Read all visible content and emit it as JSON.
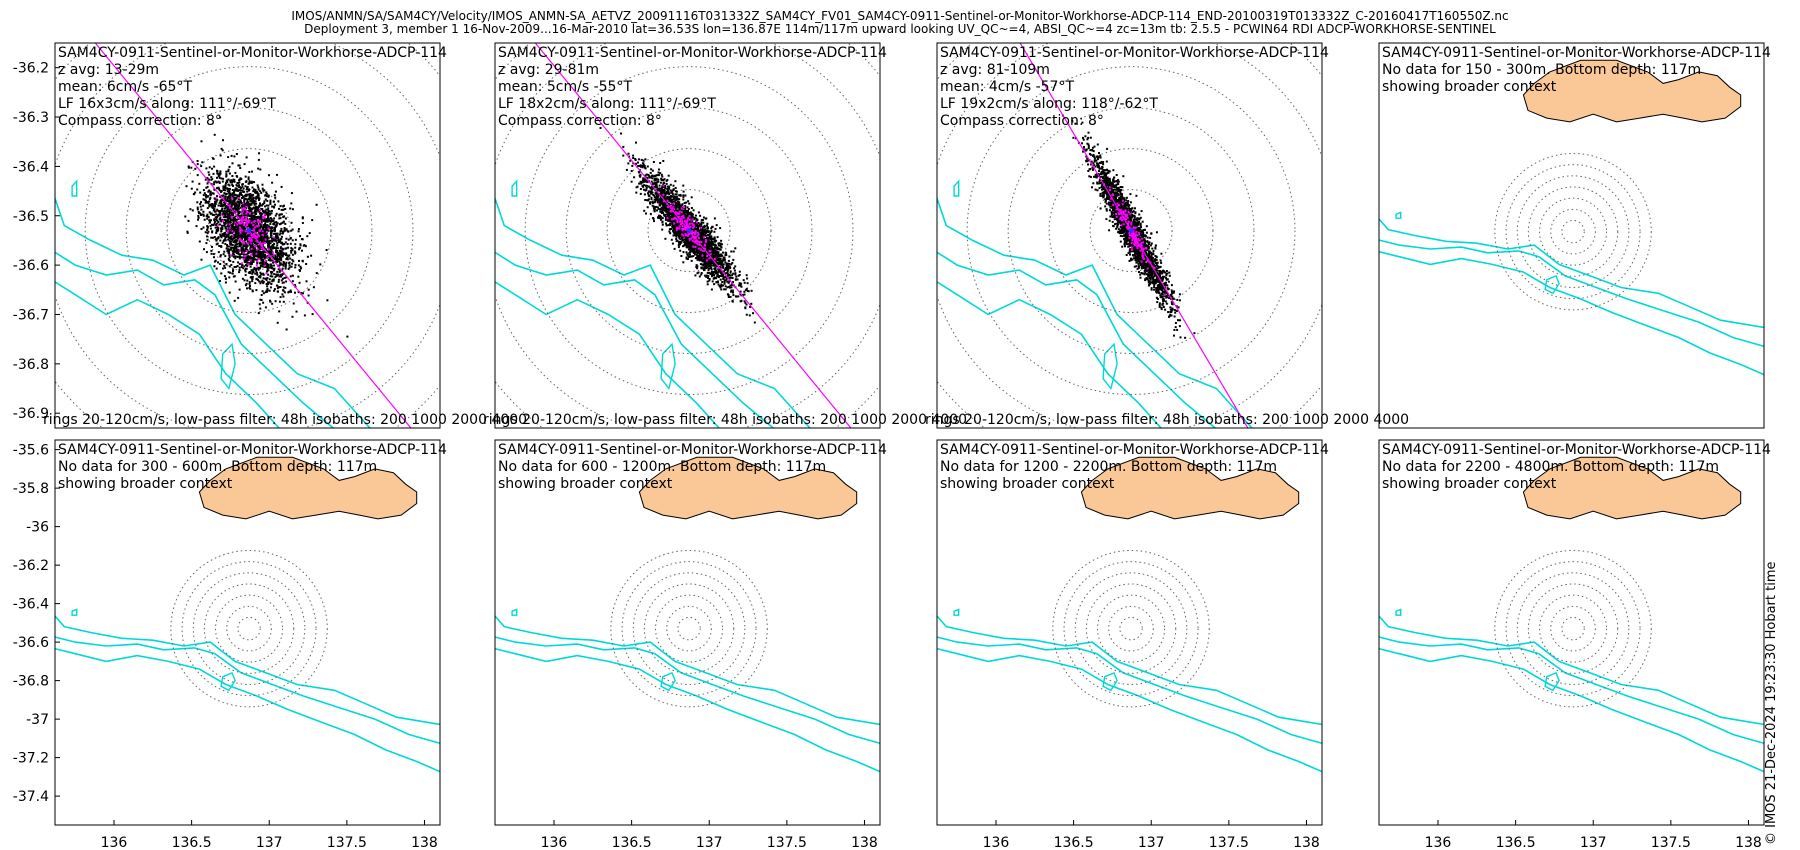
{
  "header": {
    "line1": "IMOS/ANMN/SA/SAM4CY/Velocity/IMOS_ANMN-SA_AETVZ_20091116T031332Z_SAM4CY_FV01_SAM4CY-0911-Sentinel-or-Monitor-Workhorse-ADCP-114_END-20100319T013332Z_C-20160417T160550Z.nc",
    "line2": "Deployment 3, member 1 16-Nov-2009...16-Mar-2010 lat=36.53S lon=136.87E 114m/117m upward looking UV_QC~=4, ABSI_QC~=4 zc=13m tb: 2.5.5 - PCWIN64 RDI ADCP-WORKHORSE-SENTINEL"
  },
  "credit": "© IMOS 21-Dec-2024 19:23:30 Hobart time",
  "colors": {
    "scatter": "#000000",
    "mean": "#ff00ff",
    "fit": "#ff00ff",
    "isobath": "#00d8d8",
    "land": "#f9c896",
    "ring": "#666666"
  },
  "chart_data": [
    {
      "type": "scatter",
      "row": 0,
      "col": 0,
      "title": "SAM4CY-0911-Sentinel-or-Monitor-Workhorse-ADCP-114",
      "info": [
        "z avg: 13-29m",
        "mean: 6cm/s -65°T",
        "LF 16x3cm/s along: 111°/-69°T",
        "Compass correction: 8°"
      ],
      "footer": "rings 20-120cm/s, low-pass filter: 48h isobaths: 200 1000 2000 4000",
      "xlim": [
        135.62,
        138.1
      ],
      "ylim": [
        -36.93,
        -36.15
      ],
      "yticks": [
        -36.2,
        -36.3,
        -36.4,
        -36.5,
        -36.6,
        -36.7,
        -36.8,
        -36.9
      ],
      "xticks": [],
      "center": [
        136.87,
        -36.53
      ],
      "rings": 6,
      "ring_step_deg": 0.083,
      "cloud": {
        "sx": 0.32,
        "sy": 0.11,
        "angle_deg": -12,
        "n": 2600,
        "seed": 11
      },
      "axis_deg": -21,
      "has_data": true
    },
    {
      "type": "scatter",
      "row": 0,
      "col": 1,
      "title": "SAM4CY-0911-Sentinel-or-Monitor-Workhorse-ADCP-114",
      "info": [
        "z avg: 29-81m",
        "mean: 5cm/s -55°T",
        "LF 18x2cm/s along: 111°/-69°T",
        "Compass correction: 8°"
      ],
      "footer": "rings 20-120cm/s, low-pass filter: 48h isobaths: 200 1000 2000 4000",
      "xlim": [
        135.62,
        138.1
      ],
      "ylim": [
        -36.93,
        -36.15
      ],
      "yticks": [],
      "xticks": [],
      "center": [
        136.87,
        -36.53
      ],
      "rings": 6,
      "ring_step_deg": 0.083,
      "cloud": {
        "sx": 0.34,
        "sy": 0.05,
        "angle_deg": -20,
        "n": 2400,
        "seed": 23
      },
      "axis_deg": -21,
      "has_data": true
    },
    {
      "type": "scatter",
      "row": 0,
      "col": 2,
      "title": "SAM4CY-0911-Sentinel-or-Monitor-Workhorse-ADCP-114",
      "info": [
        "z avg: 81-109m",
        "mean: 4cm/s -57°T",
        "LF 19x2cm/s along: 118°/-62°T",
        "Compass correction: 8°"
      ],
      "footer": "rings 20-120cm/s, low-pass filter: 48h isobaths: 200 1000 2000 4000",
      "xlim": [
        135.62,
        138.1
      ],
      "ylim": [
        -36.93,
        -36.15
      ],
      "yticks": [],
      "xticks": [],
      "center": [
        136.87,
        -36.53
      ],
      "rings": 6,
      "ring_step_deg": 0.083,
      "cloud": {
        "sx": 0.3,
        "sy": 0.045,
        "angle_deg": -30,
        "n": 2200,
        "seed": 37
      },
      "axis_deg": -28,
      "has_data": true
    },
    {
      "type": "scatter",
      "row": 0,
      "col": 3,
      "title": "SAM4CY-0911-Sentinel-or-Monitor-Workhorse-ADCP-114",
      "info": [
        "No data for 150 - 300m. Bottom depth: 117m",
        "showing broader context"
      ],
      "footer": "",
      "xlim": [
        135.62,
        138.1
      ],
      "ylim": [
        -37.55,
        -35.55
      ],
      "yticks": [],
      "xticks": [],
      "center": [
        136.87,
        -36.53
      ],
      "rings": 7,
      "ring_step_deg": 0.058,
      "has_data": false
    },
    {
      "type": "scatter",
      "row": 1,
      "col": 0,
      "title": "SAM4CY-0911-Sentinel-or-Monitor-Workhorse-ADCP-114",
      "info": [
        "No data for 300 - 600m. Bottom depth: 117m",
        "showing broader context"
      ],
      "footer": "",
      "xlim": [
        135.62,
        138.1
      ],
      "ylim": [
        -37.55,
        -35.55
      ],
      "yticks": [
        -35.6,
        -35.8,
        -36,
        -36.2,
        -36.4,
        -36.6,
        -36.8,
        -37,
        -37.2,
        -37.4
      ],
      "xticks": [
        136,
        136.5,
        137,
        137.5,
        138
      ],
      "center": [
        136.87,
        -36.53
      ],
      "rings": 7,
      "ring_step_deg": 0.058,
      "has_data": false
    },
    {
      "type": "scatter",
      "row": 1,
      "col": 1,
      "title": "SAM4CY-0911-Sentinel-or-Monitor-Workhorse-ADCP-114",
      "info": [
        "No data for 600 - 1200m. Bottom depth: 117m",
        "showing broader context"
      ],
      "footer": "",
      "xlim": [
        135.62,
        138.1
      ],
      "ylim": [
        -37.55,
        -35.55
      ],
      "yticks": [],
      "xticks": [
        136,
        136.5,
        137,
        137.5,
        138
      ],
      "center": [
        136.87,
        -36.53
      ],
      "rings": 7,
      "ring_step_deg": 0.058,
      "has_data": false
    },
    {
      "type": "scatter",
      "row": 1,
      "col": 2,
      "title": "SAM4CY-0911-Sentinel-or-Monitor-Workhorse-ADCP-114",
      "info": [
        "No data for 1200 - 2200m. Bottom depth: 117m",
        "showing broader context"
      ],
      "footer": "",
      "xlim": [
        135.62,
        138.1
      ],
      "ylim": [
        -37.55,
        -35.55
      ],
      "yticks": [],
      "xticks": [
        136,
        136.5,
        137,
        137.5,
        138
      ],
      "center": [
        136.87,
        -36.53
      ],
      "rings": 7,
      "ring_step_deg": 0.058,
      "has_data": false
    },
    {
      "type": "scatter",
      "row": 1,
      "col": 3,
      "title": "SAM4CY-0911-Sentinel-or-Monitor-Workhorse-ADCP-114",
      "info": [
        "No data for 2200 - 4800m. Bottom depth: 117m",
        "showing broader context"
      ],
      "footer": "",
      "xlim": [
        135.62,
        138.1
      ],
      "ylim": [
        -37.55,
        -35.55
      ],
      "yticks": [],
      "xticks": [
        136,
        136.5,
        137,
        137.5,
        138
      ],
      "center": [
        136.87,
        -36.53
      ],
      "rings": 7,
      "ring_step_deg": 0.058,
      "has_data": false
    }
  ]
}
